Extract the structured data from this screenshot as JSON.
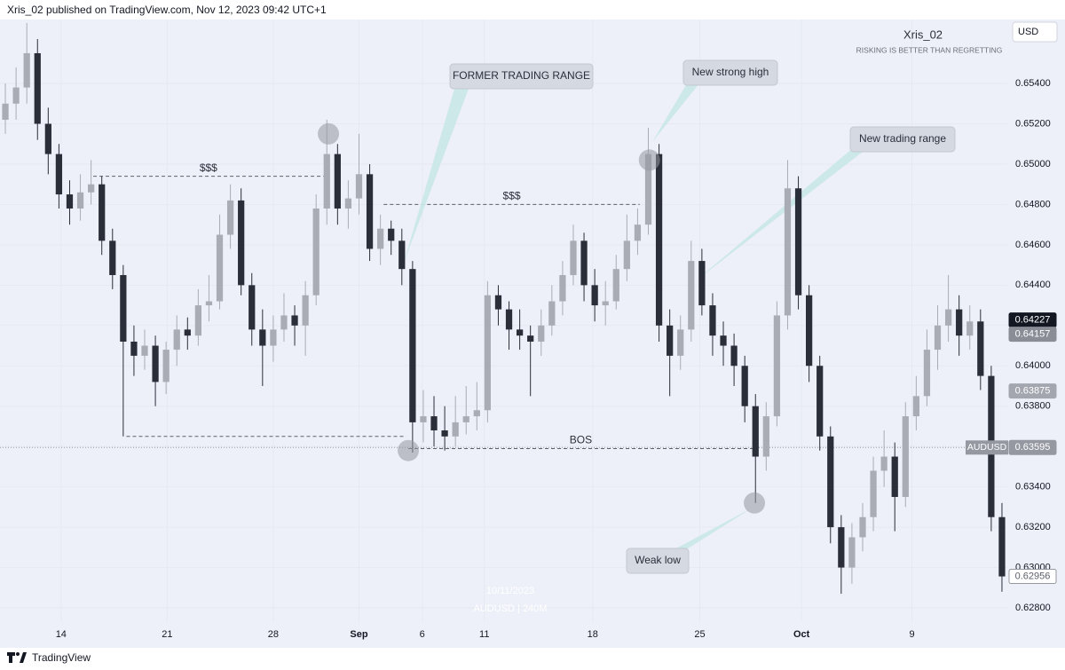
{
  "header": "Xris_02 published on TradingView.com, Nov 12, 2023 09:42 UTC+1",
  "author": "Xris_02",
  "motto": "RISKING IS BETTER THAN REGRETTING",
  "currency": "USD",
  "footer": "TradingView",
  "watermark": [
    "10/11/2023",
    "AUDUSD | 240M"
  ],
  "callouts": [
    "FORMER TRADING RANGE",
    "New strong high",
    "New trading range",
    "Weak low"
  ],
  "chart_data": {
    "type": "candlestick",
    "up_color": "#a9acb5",
    "down_color": "#2a2e39",
    "xlim": [
      0,
      94
    ],
    "ylim": [
      0.62734,
      0.65717
    ],
    "yticks": [
      {
        "value": 0.628,
        "label": "0.62800"
      },
      {
        "value": 0.63,
        "label": "0.63000"
      },
      {
        "value": 0.632,
        "label": "0.63200"
      },
      {
        "value": 0.634,
        "label": "0.63400"
      },
      {
        "value": 0.636,
        "label": "0.63600"
      },
      {
        "value": 0.638,
        "label": "0.63800"
      },
      {
        "value": 0.64,
        "label": "0.64000"
      },
      {
        "value": 0.642,
        "label": "0.64200"
      },
      {
        "value": 0.644,
        "label": "0.64400"
      },
      {
        "value": 0.646,
        "label": "0.64600"
      },
      {
        "value": 0.648,
        "label": "0.64800"
      },
      {
        "value": 0.65,
        "label": "0.65000"
      },
      {
        "value": 0.652,
        "label": "0.65200"
      },
      {
        "value": 0.654,
        "label": "0.65400"
      }
    ],
    "xticks": [
      {
        "value": 5.7,
        "label": "14"
      },
      {
        "value": 15.6,
        "label": "21"
      },
      {
        "value": 25.5,
        "label": "28"
      },
      {
        "value": 33.5,
        "label": "Sep",
        "major": true
      },
      {
        "value": 39.4,
        "label": "6"
      },
      {
        "value": 45.2,
        "label": "11"
      },
      {
        "value": 55.3,
        "label": "18"
      },
      {
        "value": 65.3,
        "label": "25"
      },
      {
        "value": 74.8,
        "label": "Oct",
        "major": true
      },
      {
        "value": 85.1,
        "label": "9"
      }
    ],
    "candles": [
      [
        0.6522,
        0.654,
        0.6515,
        0.653
      ],
      [
        0.653,
        0.6548,
        0.6522,
        0.6538
      ],
      [
        0.6538,
        0.657,
        0.653,
        0.6555
      ],
      [
        0.6555,
        0.6562,
        0.6512,
        0.652
      ],
      [
        0.652,
        0.6528,
        0.6495,
        0.6505
      ],
      [
        0.6505,
        0.651,
        0.6478,
        0.6485
      ],
      [
        0.6485,
        0.6492,
        0.647,
        0.6478
      ],
      [
        0.6478,
        0.6495,
        0.6472,
        0.6486
      ],
      [
        0.6486,
        0.6502,
        0.648,
        0.649
      ],
      [
        0.649,
        0.6494,
        0.6455,
        0.6462
      ],
      [
        0.6462,
        0.6468,
        0.6438,
        0.6445
      ],
      [
        0.6445,
        0.645,
        0.6365,
        0.6412
      ],
      [
        0.6412,
        0.642,
        0.6395,
        0.6405
      ],
      [
        0.6405,
        0.6418,
        0.6398,
        0.641
      ],
      [
        0.641,
        0.6415,
        0.638,
        0.6392
      ],
      [
        0.6392,
        0.6412,
        0.6386,
        0.6408
      ],
      [
        0.6408,
        0.6425,
        0.64,
        0.6418
      ],
      [
        0.6418,
        0.6424,
        0.6408,
        0.6415
      ],
      [
        0.6415,
        0.6438,
        0.641,
        0.643
      ],
      [
        0.643,
        0.6445,
        0.6422,
        0.6432
      ],
      [
        0.6432,
        0.6475,
        0.6428,
        0.6465
      ],
      [
        0.6465,
        0.649,
        0.6458,
        0.6482
      ],
      [
        0.6482,
        0.6488,
        0.6435,
        0.644
      ],
      [
        0.644,
        0.6446,
        0.641,
        0.6418
      ],
      [
        0.6418,
        0.6428,
        0.639,
        0.641
      ],
      [
        0.641,
        0.6425,
        0.6402,
        0.6418
      ],
      [
        0.6418,
        0.6436,
        0.6412,
        0.6425
      ],
      [
        0.6425,
        0.643,
        0.641,
        0.642
      ],
      [
        0.642,
        0.6442,
        0.6405,
        0.6435
      ],
      [
        0.6435,
        0.6485,
        0.643,
        0.6478
      ],
      [
        0.6478,
        0.6522,
        0.647,
        0.6505
      ],
      [
        0.6505,
        0.651,
        0.647,
        0.6478
      ],
      [
        0.6478,
        0.6492,
        0.6468,
        0.6483
      ],
      [
        0.6483,
        0.6515,
        0.6475,
        0.6495
      ],
      [
        0.6495,
        0.65,
        0.6452,
        0.6458
      ],
      [
        0.6458,
        0.6475,
        0.645,
        0.6468
      ],
      [
        0.6468,
        0.6472,
        0.6455,
        0.6462
      ],
      [
        0.6462,
        0.6468,
        0.644,
        0.6448
      ],
      [
        0.6448,
        0.6452,
        0.6357,
        0.6372
      ],
      [
        0.6372,
        0.6388,
        0.6362,
        0.6375
      ],
      [
        0.6375,
        0.6385,
        0.636,
        0.6368
      ],
      [
        0.6368,
        0.638,
        0.6358,
        0.6365
      ],
      [
        0.6365,
        0.6385,
        0.636,
        0.6372
      ],
      [
        0.6372,
        0.639,
        0.6366,
        0.6375
      ],
      [
        0.6375,
        0.6392,
        0.6368,
        0.6378
      ],
      [
        0.6378,
        0.6442,
        0.6372,
        0.6435
      ],
      [
        0.6435,
        0.644,
        0.642,
        0.6428
      ],
      [
        0.6428,
        0.6432,
        0.6408,
        0.6418
      ],
      [
        0.6418,
        0.6428,
        0.6408,
        0.6415
      ],
      [
        0.6415,
        0.642,
        0.6385,
        0.6412
      ],
      [
        0.6412,
        0.6428,
        0.6405,
        0.642
      ],
      [
        0.642,
        0.644,
        0.6415,
        0.6432
      ],
      [
        0.6432,
        0.6452,
        0.6425,
        0.6445
      ],
      [
        0.6445,
        0.647,
        0.644,
        0.6462
      ],
      [
        0.6462,
        0.6466,
        0.6432,
        0.644
      ],
      [
        0.644,
        0.6448,
        0.6422,
        0.643
      ],
      [
        0.643,
        0.6442,
        0.642,
        0.6432
      ],
      [
        0.6432,
        0.6455,
        0.6428,
        0.6448
      ],
      [
        0.6448,
        0.6475,
        0.6442,
        0.6462
      ],
      [
        0.6462,
        0.6478,
        0.6455,
        0.647
      ],
      [
        0.647,
        0.6518,
        0.6465,
        0.6505
      ],
      [
        0.6505,
        0.651,
        0.6412,
        0.642
      ],
      [
        0.642,
        0.6428,
        0.6385,
        0.6405
      ],
      [
        0.6405,
        0.6425,
        0.6398,
        0.6418
      ],
      [
        0.6418,
        0.6462,
        0.6412,
        0.6452
      ],
      [
        0.6452,
        0.6458,
        0.6425,
        0.643
      ],
      [
        0.643,
        0.6436,
        0.6405,
        0.6415
      ],
      [
        0.6415,
        0.6422,
        0.64,
        0.641
      ],
      [
        0.641,
        0.6416,
        0.639,
        0.64
      ],
      [
        0.64,
        0.6405,
        0.6372,
        0.638
      ],
      [
        0.638,
        0.6386,
        0.6332,
        0.6355
      ],
      [
        0.6355,
        0.6382,
        0.6348,
        0.6375
      ],
      [
        0.6375,
        0.6432,
        0.637,
        0.6425
      ],
      [
        0.6425,
        0.6502,
        0.6418,
        0.6488
      ],
      [
        0.6488,
        0.6494,
        0.6428,
        0.6435
      ],
      [
        0.6435,
        0.644,
        0.6392,
        0.64
      ],
      [
        0.64,
        0.6405,
        0.6358,
        0.6365
      ],
      [
        0.6365,
        0.637,
        0.6312,
        0.632
      ],
      [
        0.632,
        0.6326,
        0.6287,
        0.63
      ],
      [
        0.63,
        0.6322,
        0.6292,
        0.6315
      ],
      [
        0.6315,
        0.6332,
        0.6308,
        0.6325
      ],
      [
        0.6325,
        0.6355,
        0.6318,
        0.6348
      ],
      [
        0.6348,
        0.6368,
        0.634,
        0.6355
      ],
      [
        0.6355,
        0.6362,
        0.6318,
        0.6335
      ],
      [
        0.6335,
        0.6382,
        0.633,
        0.6375
      ],
      [
        0.6375,
        0.6395,
        0.6368,
        0.6385
      ],
      [
        0.6385,
        0.6418,
        0.638,
        0.6408
      ],
      [
        0.6408,
        0.643,
        0.6398,
        0.642
      ],
      [
        0.642,
        0.6445,
        0.6412,
        0.6428
      ],
      [
        0.6428,
        0.6435,
        0.6405,
        0.6415
      ],
      [
        0.6415,
        0.643,
        0.6408,
        0.6422
      ],
      [
        0.6422,
        0.6428,
        0.6388,
        0.6395
      ],
      [
        0.6395,
        0.64,
        0.6318,
        0.6325
      ],
      [
        0.6325,
        0.6332,
        0.6288,
        0.62956
      ]
    ],
    "levels": [
      {
        "label": "$$$",
        "value": 0.6494,
        "from": 8.7,
        "to": 30.2
      },
      {
        "value": 0.6365,
        "from": 11.8,
        "to": 37.9
      },
      {
        "label": "$$$",
        "value": 0.648,
        "from": 35.8,
        "to": 59.7
      },
      {
        "label": "BOS",
        "value": 0.6359,
        "from": 38.1,
        "to": 70.3
      }
    ],
    "markers": [
      {
        "x": 30.65,
        "value": 0.6515
      },
      {
        "x": 60.6,
        "value": 0.6502
      },
      {
        "x": 38.1,
        "value": 0.6358
      },
      {
        "x": 70.4,
        "value": 0.6332
      }
    ],
    "price_labels": [
      {
        "value": 0.64227,
        "color": "#131722"
      },
      {
        "value": 0.64157,
        "color": "#8a8d96"
      },
      {
        "value": 0.63875,
        "color": "#a3a6ae"
      },
      {
        "value": 0.63595,
        "color": "#9598a1",
        "symbol": "AUDUSD"
      },
      {
        "value": 0.62956,
        "color": "#ffffff"
      }
    ]
  }
}
